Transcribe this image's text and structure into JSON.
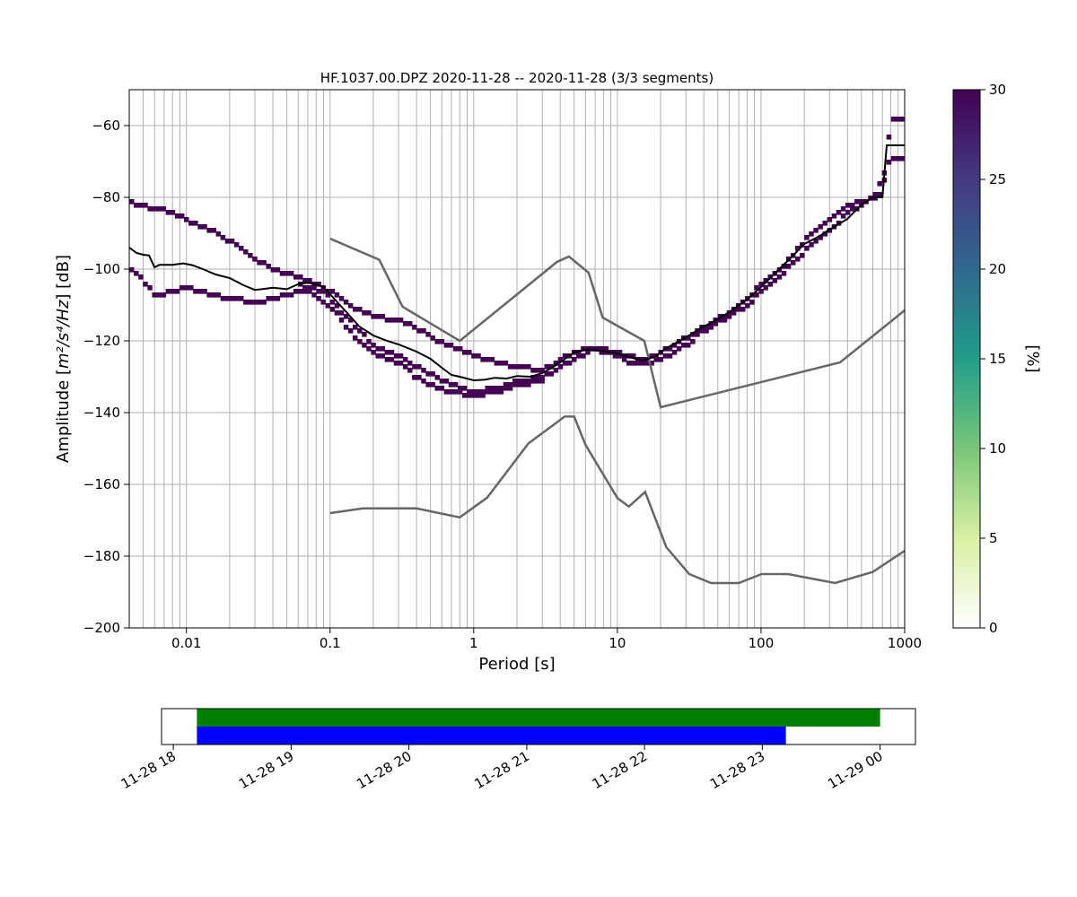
{
  "chart_data": [
    {
      "type": "heatmap",
      "title": "HF.1037.00.DPZ   2020-11-28 -- 2020-11-28  (3/3 segments)",
      "xlabel": "Period [s]",
      "ylabel_main": "Amplitude [",
      "ylabel_units": "m²/s⁴/Hz",
      "ylabel_tail": "] [dB]",
      "xscale": "log",
      "xlim": [
        0.004,
        1000
      ],
      "ylim": [
        -200,
        -50
      ],
      "grid": true,
      "x_ticks": [
        {
          "v": 0.01,
          "label": "0.01"
        },
        {
          "v": 0.1,
          "label": "0.1"
        },
        {
          "v": 1,
          "label": "1"
        },
        {
          "v": 10,
          "label": "10"
        },
        {
          "v": 100,
          "label": "100"
        },
        {
          "v": 1000,
          "label": "1000"
        }
      ],
      "y_ticks": [
        {
          "v": -60,
          "label": "−60"
        },
        {
          "v": -80,
          "label": "−80"
        },
        {
          "v": -100,
          "label": "−100"
        },
        {
          "v": -120,
          "label": "−120"
        },
        {
          "v": -140,
          "label": "−140"
        },
        {
          "v": -160,
          "label": "−160"
        },
        {
          "v": -180,
          "label": "−180"
        },
        {
          "v": -200,
          "label": "−200"
        }
      ],
      "colorbar": {
        "label": "[%]",
        "range": [
          0,
          30
        ],
        "ticks": [
          {
            "v": 0,
            "label": "0"
          },
          {
            "v": 5,
            "label": "5"
          },
          {
            "v": 10,
            "label": "10"
          },
          {
            "v": 15,
            "label": "15"
          },
          {
            "v": 20,
            "label": "20"
          },
          {
            "v": 25,
            "label": "25"
          },
          {
            "v": 30,
            "label": "30"
          }
        ],
        "colors": [
          "#ffffff",
          "#d9f0a3",
          "#78c679",
          "#1f9e89",
          "#31688e",
          "#443983",
          "#440154"
        ]
      },
      "colors": {
        "cell": "#440154",
        "mean": "#000000",
        "noise_model": "#666666",
        "grid": "#b0b0b0"
      },
      "psd_bands": [
        {
          "name": "upper",
          "points": [
            [
              0.004,
              -81
            ],
            [
              0.006,
              -83
            ],
            [
              0.008,
              -84
            ],
            [
              0.01,
              -86
            ],
            [
              0.015,
              -89
            ],
            [
              0.02,
              -92
            ],
            [
              0.03,
              -97
            ],
            [
              0.04,
              -100
            ],
            [
              0.05,
              -101
            ],
            [
              0.07,
              -103
            ],
            [
              0.1,
              -106
            ],
            [
              0.15,
              -111
            ],
            [
              0.2,
              -113
            ],
            [
              0.3,
              -114
            ],
            [
              0.4,
              -116
            ],
            [
              0.5,
              -119
            ],
            [
              0.7,
              -121
            ],
            [
              1,
              -124
            ],
            [
              1.5,
              -126
            ],
            [
              2,
              -127
            ],
            [
              3,
              -128
            ],
            [
              4,
              -125
            ],
            [
              5,
              -123
            ],
            [
              6,
              -122
            ],
            [
              8,
              -122
            ],
            [
              10,
              -123
            ],
            [
              12,
              -124
            ],
            [
              15,
              -125
            ],
            [
              20,
              -123
            ],
            [
              30,
              -119
            ],
            [
              40,
              -116
            ],
            [
              60,
              -112
            ],
            [
              80,
              -108
            ],
            [
              100,
              -104
            ],
            [
              150,
              -98
            ],
            [
              200,
              -92
            ],
            [
              300,
              -86
            ],
            [
              400,
              -82
            ],
            [
              500,
              -81
            ],
            [
              700,
              -79
            ],
            [
              800,
              -58
            ],
            [
              1000,
              -58
            ]
          ]
        },
        {
          "name": "middle",
          "points": [
            [
              0.004,
              -100
            ],
            [
              0.005,
              -103
            ],
            [
              0.006,
              -107
            ],
            [
              0.008,
              -106
            ],
            [
              0.01,
              -105
            ],
            [
              0.015,
              -107
            ],
            [
              0.02,
              -108
            ],
            [
              0.03,
              -109
            ],
            [
              0.04,
              -108
            ],
            [
              0.05,
              -107
            ],
            [
              0.06,
              -106
            ],
            [
              0.08,
              -105
            ],
            [
              0.1,
              -108
            ],
            [
              0.15,
              -116
            ],
            [
              0.2,
              -121
            ],
            [
              0.3,
              -124
            ],
            [
              0.4,
              -127
            ],
            [
              0.5,
              -129
            ],
            [
              0.7,
              -132
            ],
            [
              1,
              -134
            ],
            [
              1.5,
              -133
            ],
            [
              2,
              -131
            ],
            [
              3,
              -130
            ],
            [
              4,
              -127
            ],
            [
              5,
              -125
            ],
            [
              7,
              -122
            ],
            [
              10,
              -124
            ],
            [
              12,
              -126
            ],
            [
              15,
              -126
            ],
            [
              20,
              -125
            ],
            [
              30,
              -121
            ],
            [
              40,
              -117
            ],
            [
              60,
              -113
            ],
            [
              80,
              -110
            ],
            [
              100,
              -106
            ],
            [
              150,
              -100
            ],
            [
              200,
              -95
            ],
            [
              300,
              -89
            ],
            [
              400,
              -84
            ],
            [
              600,
              -80
            ],
            [
              800,
              -69
            ],
            [
              1000,
              -69
            ]
          ]
        },
        {
          "name": "lower",
          "points": [
            [
              0.06,
              -104
            ],
            [
              0.1,
              -110
            ],
            [
              0.15,
              -119
            ],
            [
              0.2,
              -123
            ],
            [
              0.3,
              -126
            ],
            [
              0.4,
              -130
            ],
            [
              0.5,
              -132
            ],
            [
              0.7,
              -134
            ],
            [
              1,
              -135
            ],
            [
              1.5,
              -134
            ],
            [
              2,
              -132
            ],
            [
              3,
              -131
            ]
          ]
        }
      ],
      "mean_curve": [
        [
          0.004,
          -94
        ],
        [
          0.0045,
          -95.5
        ],
        [
          0.005,
          -96
        ],
        [
          0.0055,
          -96.2
        ],
        [
          0.006,
          -99.5
        ],
        [
          0.0065,
          -98.8
        ],
        [
          0.008,
          -98.8
        ],
        [
          0.0095,
          -98.4
        ],
        [
          0.011,
          -98.9
        ],
        [
          0.013,
          -100
        ],
        [
          0.016,
          -101.5
        ],
        [
          0.02,
          -102.5
        ],
        [
          0.025,
          -104.5
        ],
        [
          0.03,
          -105.8
        ],
        [
          0.035,
          -105.5
        ],
        [
          0.04,
          -105.2
        ],
        [
          0.05,
          -105.6
        ],
        [
          0.06,
          -104.2
        ],
        [
          0.07,
          -103.8
        ],
        [
          0.08,
          -104.3
        ],
        [
          0.09,
          -105
        ],
        [
          0.1,
          -107
        ],
        [
          0.13,
          -112
        ],
        [
          0.16,
          -116
        ],
        [
          0.2,
          -118.5
        ],
        [
          0.25,
          -120
        ],
        [
          0.3,
          -121
        ],
        [
          0.4,
          -123
        ],
        [
          0.5,
          -125
        ],
        [
          0.6,
          -127.5
        ],
        [
          0.7,
          -129.5
        ],
        [
          0.8,
          -130
        ],
        [
          1,
          -131
        ],
        [
          1.2,
          -130.8
        ],
        [
          1.4,
          -130.3
        ],
        [
          1.7,
          -130.5
        ],
        [
          2,
          -129.8
        ],
        [
          2.5,
          -130
        ],
        [
          3,
          -129
        ],
        [
          3.5,
          -127.5
        ],
        [
          4,
          -126
        ],
        [
          4.5,
          -124.5
        ],
        [
          5,
          -123.2
        ],
        [
          6,
          -122.5
        ],
        [
          8,
          -122.8
        ],
        [
          10,
          -123.5
        ],
        [
          12,
          -124.5
        ],
        [
          15,
          -125.5
        ],
        [
          18,
          -124.5
        ],
        [
          22,
          -122
        ],
        [
          30,
          -119
        ],
        [
          40,
          -116
        ],
        [
          50,
          -114
        ],
        [
          60,
          -112
        ],
        [
          80,
          -108.5
        ],
        [
          100,
          -105
        ],
        [
          130,
          -100.5
        ],
        [
          160,
          -97
        ],
        [
          200,
          -93
        ],
        [
          250,
          -91
        ],
        [
          300,
          -89
        ],
        [
          400,
          -86
        ],
        [
          500,
          -82
        ],
        [
          600,
          -80
        ],
        [
          700,
          -80
        ],
        [
          750,
          -65.5
        ],
        [
          1000,
          -65.5
        ]
      ],
      "noise_models": [
        {
          "name": "upper",
          "points": [
            [
              0.1,
              -91.5
            ],
            [
              0.22,
              -97.4
            ],
            [
              0.32,
              -110.5
            ],
            [
              0.8,
              -120
            ],
            [
              3.8,
              -98
            ],
            [
              4.6,
              -96.5
            ],
            [
              6.3,
              -101
            ],
            [
              7.9,
              -113.5
            ],
            [
              15.4,
              -120
            ],
            [
              20,
              -138.5
            ],
            [
              354.8,
              -126
            ],
            [
              1000,
              -111.5
            ]
          ]
        },
        {
          "name": "lower",
          "points": [
            [
              0.1,
              -168
            ],
            [
              0.17,
              -166.7
            ],
            [
              0.4,
              -166.7
            ],
            [
              0.8,
              -169.2
            ],
            [
              1.24,
              -163.7
            ],
            [
              2.4,
              -148.6
            ],
            [
              4.3,
              -141.1
            ],
            [
              5,
              -141.1
            ],
            [
              6,
              -149
            ],
            [
              10,
              -163.8
            ],
            [
              12,
              -166.2
            ],
            [
              15.6,
              -162.1
            ],
            [
              21.9,
              -177.5
            ],
            [
              31.6,
              -185
            ],
            [
              45,
              -187.5
            ],
            [
              70,
              -187.5
            ],
            [
              101,
              -185
            ],
            [
              154,
              -185
            ],
            [
              328,
              -187.5
            ],
            [
              600,
              -184.4
            ],
            [
              1000,
              -178.5
            ]
          ]
        }
      ]
    },
    {
      "type": "timeline",
      "x_ticks": [
        "11-28 18",
        "11-28 19",
        "11-28 20",
        "11-28 21",
        "11-28 22",
        "11-28 23",
        "11-29 00"
      ],
      "xlim_hours": [
        17.9,
        24.3
      ],
      "bars": [
        {
          "start_hours": 18.2,
          "end_hours": 24.0,
          "color": "#008000"
        },
        {
          "start_hours": 18.2,
          "end_hours": 23.2,
          "color": "#0000ff"
        }
      ]
    }
  ]
}
